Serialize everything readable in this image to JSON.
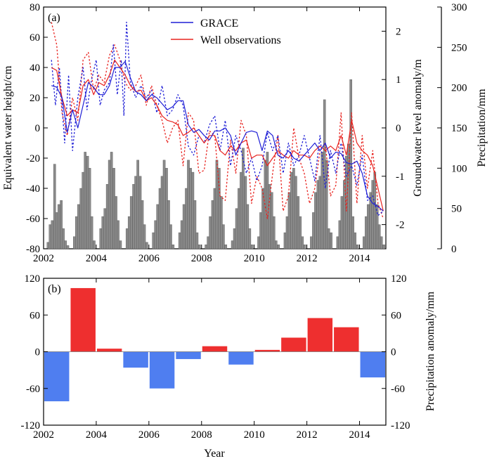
{
  "chart_data": [
    {
      "panel": "(a)",
      "type": "line",
      "xlabel": "",
      "ylabel_left": "Equivalent water height/cm",
      "ylabel_right_inner": "Groundwater level anomaly/m",
      "ylabel_right_outer": "Precipitation/mm",
      "xlim": [
        2002,
        2015
      ],
      "ylim_left": [
        -80,
        80
      ],
      "ylim_right_inner": [
        -2.5,
        2.5
      ],
      "ylim_right_outer": [
        0,
        300
      ],
      "xticks": [
        "2002",
        "2004",
        "2006",
        "2008",
        "2010",
        "2012",
        "2014"
      ],
      "yticks_left": [
        "-80",
        "-60",
        "-40",
        "-20",
        "0",
        "20",
        "40",
        "60",
        "80"
      ],
      "yticks_right_inner": [
        "-2",
        "-1",
        "0",
        "1",
        "2"
      ],
      "yticks_right_outer": [
        "0",
        "50",
        "100",
        "150",
        "200",
        "250",
        "300"
      ],
      "legend": [
        {
          "name": "GRACE",
          "color": "#1f1fd6"
        },
        {
          "name": "Well observations",
          "color": "#e8231f"
        }
      ],
      "grace_smooth": {
        "x": [
          2002.3,
          2002.5,
          2002.7,
          2002.9,
          2003.1,
          2003.3,
          2003.5,
          2003.7,
          2003.9,
          2004.1,
          2004.3,
          2004.5,
          2004.7,
          2004.9,
          2005.1,
          2005.3,
          2005.5,
          2005.7,
          2005.9,
          2006.1,
          2006.3,
          2006.5,
          2006.7,
          2006.9,
          2007.1,
          2007.3,
          2007.5,
          2007.7,
          2007.9,
          2008.1,
          2008.3,
          2008.5,
          2008.7,
          2008.9,
          2009.1,
          2009.3,
          2009.5,
          2009.7,
          2009.9,
          2010.1,
          2010.3,
          2010.5,
          2010.7,
          2010.9,
          2011.1,
          2011.3,
          2011.5,
          2011.7,
          2011.9,
          2012.1,
          2012.3,
          2012.5,
          2012.7,
          2012.9,
          2013.1,
          2013.3,
          2013.5,
          2013.7,
          2013.9,
          2014.1,
          2014.3,
          2014.5,
          2014.7,
          2014.9
        ],
        "y": [
          28,
          27,
          20,
          -3,
          12,
          0,
          15,
          30,
          27,
          22,
          22,
          28,
          40,
          40,
          44,
          33,
          24,
          22,
          18,
          22,
          20,
          16,
          12,
          14,
          18,
          18,
          2,
          -3,
          -1,
          -5,
          -8,
          -2,
          -2,
          0,
          -5,
          -18,
          -10,
          -3,
          -2,
          -3,
          -15,
          -2,
          -5,
          -18,
          -20,
          -15,
          -20,
          -22,
          -18,
          -14,
          -10,
          -15,
          -10,
          -20,
          -16,
          -17,
          -23,
          -24,
          -22,
          -30,
          -45,
          -50,
          -52,
          -55
        ]
      },
      "grace_monthly": {
        "x": [
          2002.3,
          2002.45,
          2002.6,
          2002.8,
          2002.95,
          2003.1,
          2003.3,
          2003.5,
          2003.65,
          2003.8,
          2004.0,
          2004.15,
          2004.3,
          2004.5,
          2004.65,
          2004.8,
          2004.95,
          2005.05,
          2005.15,
          2005.3,
          2005.5,
          2005.7,
          2005.9,
          2006.1,
          2006.3,
          2006.5,
          2006.7,
          2006.9,
          2007.1,
          2007.3,
          2007.5,
          2007.7,
          2007.9,
          2008.1,
          2008.3,
          2008.5,
          2008.7,
          2008.9,
          2009.1,
          2009.3,
          2009.5,
          2009.7,
          2009.9,
          2010.1,
          2010.3,
          2010.5,
          2010.7,
          2010.9,
          2011.1,
          2011.3,
          2011.5,
          2011.7,
          2011.9,
          2012.1,
          2012.3,
          2012.5,
          2012.7,
          2012.9,
          2013.1,
          2013.3,
          2013.5,
          2013.7,
          2013.9,
          2014.1,
          2014.3,
          2014.5,
          2014.7,
          2014.9
        ],
        "y": [
          45,
          15,
          40,
          -10,
          35,
          -15,
          20,
          40,
          12,
          30,
          45,
          15,
          25,
          30,
          55,
          22,
          45,
          8,
          70,
          30,
          20,
          28,
          20,
          25,
          10,
          28,
          8,
          12,
          22,
          15,
          -12,
          -18,
          -5,
          -10,
          2,
          8,
          -15,
          5,
          -25,
          -5,
          -15,
          -30,
          -20,
          -35,
          -25,
          -3,
          -15,
          -5,
          -30,
          -10,
          -25,
          -18,
          -5,
          -20,
          -35,
          -5,
          -40,
          -15,
          -30,
          -10,
          -32,
          -25,
          -38,
          -18,
          -48,
          -45,
          -58,
          -55
        ]
      },
      "well_smooth": {
        "x": [
          2002.3,
          2002.5,
          2002.7,
          2002.9,
          2003.1,
          2003.3,
          2003.5,
          2003.7,
          2003.9,
          2004.1,
          2004.3,
          2004.5,
          2004.7,
          2004.9,
          2005.1,
          2005.3,
          2005.5,
          2005.7,
          2005.9,
          2006.1,
          2006.3,
          2006.5,
          2006.7,
          2006.9,
          2007.1,
          2007.3,
          2007.5,
          2007.7,
          2007.9,
          2008.1,
          2008.3,
          2008.5,
          2008.7,
          2008.9,
          2009.1,
          2009.3,
          2009.5,
          2009.7,
          2009.9,
          2010.1,
          2010.3,
          2010.5,
          2010.7,
          2010.9,
          2011.1,
          2011.3,
          2011.5,
          2011.7,
          2011.9,
          2012.1,
          2012.3,
          2012.5,
          2012.7,
          2012.9,
          2013.1,
          2013.3,
          2013.5,
          2013.7,
          2013.9,
          2014.1,
          2014.3,
          2014.5,
          2014.7,
          2014.9
        ],
        "y": [
          40,
          38,
          20,
          8,
          12,
          10,
          28,
          32,
          22,
          30,
          28,
          35,
          45,
          40,
          35,
          28,
          24,
          25,
          18,
          20,
          15,
          8,
          5,
          4,
          2,
          -5,
          -3,
          0,
          -5,
          -10,
          -5,
          -5,
          -15,
          -18,
          -12,
          -15,
          -10,
          -8,
          -20,
          -18,
          -18,
          -25,
          -20,
          -15,
          -18,
          -20,
          -15,
          -18,
          -18,
          -20,
          -15,
          -12,
          -15,
          -12,
          -15,
          -5,
          -18,
          5,
          -10,
          -15,
          -18,
          -25,
          -40,
          -55
        ]
      },
      "well_monthly": {
        "x": [
          2002.3,
          2002.5,
          2002.7,
          2002.9,
          2003.1,
          2003.3,
          2003.5,
          2003.7,
          2003.9,
          2004.1,
          2004.3,
          2004.5,
          2004.7,
          2004.9,
          2005.1,
          2005.3,
          2005.5,
          2005.7,
          2005.9,
          2006.1,
          2006.3,
          2006.5,
          2006.7,
          2006.9,
          2007.1,
          2007.3,
          2007.5,
          2007.7,
          2007.9,
          2008.1,
          2008.3,
          2008.5,
          2008.7,
          2008.9,
          2009.1,
          2009.3,
          2009.5,
          2009.7,
          2009.9,
          2010.1,
          2010.3,
          2010.5,
          2010.7,
          2010.9,
          2011.1,
          2011.3,
          2011.5,
          2011.7,
          2011.9,
          2012.1,
          2012.3,
          2012.5,
          2012.7,
          2012.9,
          2013.1,
          2013.3,
          2013.5,
          2013.7,
          2013.9,
          2014.1,
          2014.3,
          2014.5,
          2014.7,
          2014.9
        ],
        "y": [
          70,
          55,
          10,
          -5,
          20,
          5,
          45,
          50,
          25,
          35,
          30,
          48,
          55,
          45,
          30,
          25,
          28,
          35,
          15,
          28,
          15,
          5,
          -10,
          0,
          5,
          -25,
          10,
          5,
          -30,
          -28,
          -2,
          -5,
          -45,
          -48,
          -8,
          -30,
          5,
          -5,
          -50,
          -32,
          -40,
          -60,
          -30,
          -5,
          -55,
          -45,
          0,
          -20,
          -30,
          -50,
          -40,
          -15,
          -10,
          -45,
          -38,
          10,
          -55,
          10,
          -50,
          -5,
          -40,
          -15,
          -50,
          -60
        ]
      },
      "precipitation": {
        "x": [
          2002.17,
          2002.25,
          2002.33,
          2002.42,
          2002.5,
          2002.58,
          2002.67,
          2002.75,
          2002.83,
          2002.92,
          2003.17,
          2003.25,
          2003.33,
          2003.42,
          2003.5,
          2003.58,
          2003.67,
          2003.75,
          2003.83,
          2003.92,
          2004.17,
          2004.25,
          2004.33,
          2004.42,
          2004.5,
          2004.58,
          2004.67,
          2004.75,
          2004.83,
          2004.92,
          2005.17,
          2005.25,
          2005.33,
          2005.42,
          2005.5,
          2005.58,
          2005.67,
          2005.75,
          2005.83,
          2005.92,
          2006.17,
          2006.25,
          2006.33,
          2006.42,
          2006.5,
          2006.58,
          2006.67,
          2006.75,
          2006.83,
          2006.92,
          2007.17,
          2007.25,
          2007.33,
          2007.42,
          2007.5,
          2007.58,
          2007.67,
          2007.75,
          2007.83,
          2007.92,
          2008.17,
          2008.25,
          2008.33,
          2008.42,
          2008.5,
          2008.58,
          2008.67,
          2008.75,
          2008.83,
          2008.92,
          2009.17,
          2009.25,
          2009.33,
          2009.42,
          2009.5,
          2009.58,
          2009.67,
          2009.75,
          2009.83,
          2009.92,
          2010.17,
          2010.25,
          2010.33,
          2010.42,
          2010.5,
          2010.58,
          2010.67,
          2010.75,
          2010.83,
          2010.92,
          2011.17,
          2011.25,
          2011.33,
          2011.42,
          2011.5,
          2011.58,
          2011.67,
          2011.75,
          2011.83,
          2011.92,
          2012.17,
          2012.25,
          2012.33,
          2012.42,
          2012.5,
          2012.58,
          2012.67,
          2012.75,
          2012.83,
          2012.92,
          2013.17,
          2013.25,
          2013.33,
          2013.42,
          2013.5,
          2013.58,
          2013.67,
          2013.75,
          2013.83,
          2013.92,
          2014.17,
          2014.25,
          2014.33,
          2014.42,
          2014.5,
          2014.58,
          2014.67,
          2014.75,
          2014.83,
          2014.92
        ],
        "y": [
          8,
          30,
          35,
          105,
          45,
          55,
          60,
          25,
          10,
          4,
          15,
          40,
          55,
          75,
          95,
          120,
          115,
          100,
          40,
          10,
          25,
          40,
          50,
          80,
          110,
          120,
          100,
          65,
          35,
          10,
          25,
          40,
          65,
          80,
          90,
          110,
          90,
          60,
          30,
          8,
          20,
          35,
          55,
          75,
          90,
          110,
          100,
          60,
          30,
          5,
          20,
          35,
          55,
          75,
          110,
          100,
          95,
          60,
          20,
          5,
          5,
          15,
          40,
          60,
          75,
          110,
          100,
          65,
          30,
          5,
          10,
          25,
          50,
          75,
          95,
          125,
          90,
          55,
          25,
          5,
          15,
          45,
          75,
          110,
          120,
          80,
          70,
          40,
          10,
          5,
          20,
          40,
          70,
          95,
          100,
          90,
          65,
          40,
          15,
          5,
          15,
          45,
          70,
          85,
          90,
          120,
          185,
          110,
          25,
          20,
          15,
          35,
          65,
          85,
          115,
          130,
          210,
          40,
          20,
          5,
          15,
          40,
          55,
          70,
          85,
          95,
          55,
          30,
          15,
          5
        ]
      }
    },
    {
      "panel": "(b)",
      "type": "bar",
      "xlabel": "Year",
      "ylabel": "Precipitation anomaly/mm",
      "xlim": [
        2002,
        2015
      ],
      "ylim": [
        -120,
        120
      ],
      "xticks": [
        "2002",
        "2004",
        "2006",
        "2008",
        "2010",
        "2012",
        "2014"
      ],
      "yticks": [
        "-120",
        "-60",
        "0",
        "60",
        "120"
      ],
      "categories": [
        "2002",
        "2003",
        "2004",
        "2005",
        "2006",
        "2007",
        "2008",
        "2009",
        "2010",
        "2011",
        "2012",
        "2013",
        "2014"
      ],
      "values": [
        -81,
        104,
        5,
        -26,
        -60,
        -12,
        9,
        -21,
        3,
        23,
        55,
        40,
        -42
      ],
      "positive_color": "#ee2f2f",
      "negative_color": "#4f7ef0"
    }
  ]
}
